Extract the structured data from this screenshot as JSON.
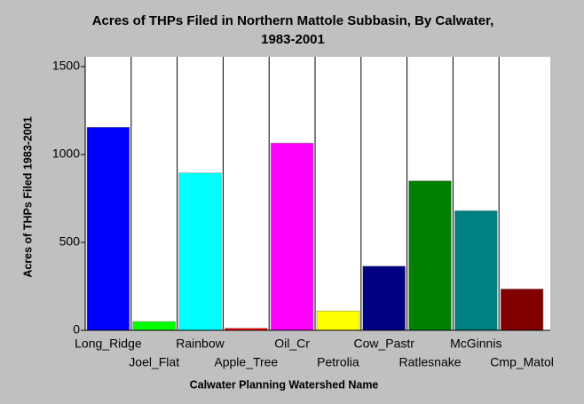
{
  "chart_data": {
    "type": "bar",
    "title": [
      "Acres of THPs Filed in Northern Mattole Subbasin, By Calwater,",
      "1983-2001"
    ],
    "x_label": "Calwater Planning Watershed Name",
    "y_label": "Acres of THPs Filed 1983-2001",
    "categories": [
      "Long_Ridge",
      "Joel_Flat",
      "Rainbow",
      "Apple_Tree",
      "Oil_Cr",
      "Petrolia",
      "Cow_Pastr",
      "Ratlesnake",
      "McGinnis",
      "Cmp_Matol"
    ],
    "values": [
      1155,
      50,
      895,
      12,
      1065,
      110,
      365,
      850,
      680,
      235
    ],
    "colors": [
      "#0000ff",
      "#00ff00",
      "#00ffff",
      "#ff0000",
      "#ff00ff",
      "#ffff00",
      "#000080",
      "#008000",
      "#008080",
      "#800000"
    ],
    "ylim": [
      0,
      1500
    ],
    "yticks": [
      0,
      500,
      1000,
      1500
    ],
    "grid": true
  }
}
